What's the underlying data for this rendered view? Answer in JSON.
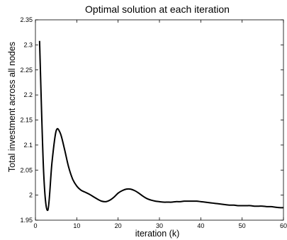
{
  "chart_data": {
    "type": "line",
    "title": "Optimal solution at each iteration",
    "xlabel": "iteration (k)",
    "ylabel": "Total investment across all nodes",
    "xlim": [
      0,
      60
    ],
    "ylim": [
      1.95,
      2.35
    ],
    "xticks": [
      0,
      10,
      20,
      30,
      40,
      50,
      60
    ],
    "yticks": [
      1.95,
      2,
      2.05,
      2.1,
      2.15,
      2.2,
      2.25,
      2.3,
      2.35
    ],
    "ytick_labels": [
      "1.95",
      "2",
      "2.05",
      "2.1",
      "2.15",
      "2.2",
      "2.25",
      "2.3",
      "2.35"
    ],
    "grid": false,
    "series": [
      {
        "x": [
          1,
          2,
          3,
          4,
          5,
          6,
          7,
          8,
          9,
          10,
          11,
          12,
          13,
          14,
          15,
          16,
          17,
          18,
          19,
          20,
          21,
          22,
          23,
          24,
          25,
          26,
          27,
          28,
          29,
          30,
          31,
          32,
          33,
          34,
          35,
          36,
          37,
          38,
          39,
          40,
          41,
          42,
          43,
          44,
          45,
          46,
          47,
          48,
          49,
          50,
          51,
          52,
          53,
          54,
          55,
          56,
          57,
          58,
          59,
          60
        ],
        "values": [
          2.308,
          2.043,
          1.97,
          2.065,
          2.128,
          2.124,
          2.093,
          2.057,
          2.032,
          2.018,
          2.01,
          2.006,
          2.002,
          1.997,
          1.992,
          1.988,
          1.987,
          1.99,
          1.996,
          2.004,
          2.009,
          2.012,
          2.012,
          2.009,
          2.004,
          1.998,
          1.993,
          1.99,
          1.988,
          1.987,
          1.986,
          1.986,
          1.986,
          1.987,
          1.987,
          1.988,
          1.988,
          1.988,
          1.988,
          1.987,
          1.986,
          1.985,
          1.984,
          1.983,
          1.982,
          1.981,
          1.98,
          1.98,
          1.979,
          1.979,
          1.979,
          1.979,
          1.978,
          1.978,
          1.978,
          1.977,
          1.977,
          1.976,
          1.975,
          1.975
        ]
      }
    ]
  }
}
